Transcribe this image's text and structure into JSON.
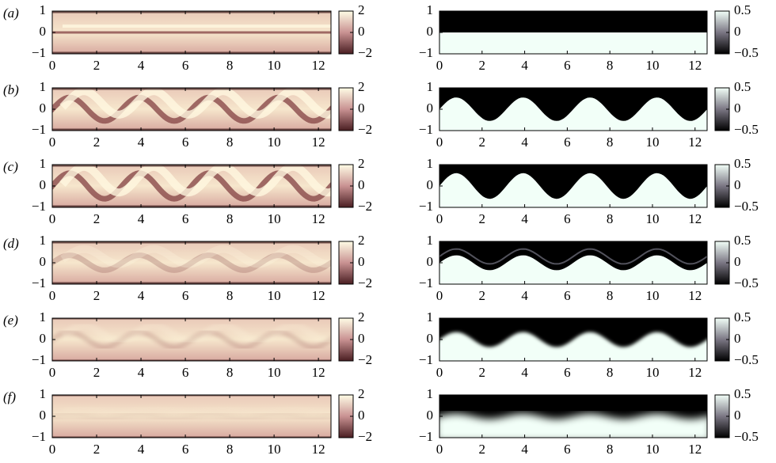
{
  "panels": [
    {
      "label": "(a)"
    },
    {
      "label": "(b)"
    },
    {
      "label": "(c)"
    },
    {
      "label": "(d)"
    },
    {
      "label": "(e)"
    },
    {
      "label": "(f)"
    }
  ],
  "x_axis": {
    "lim": [
      0,
      12.566
    ],
    "ticks": [
      0,
      2,
      4,
      6,
      8,
      10,
      12
    ]
  },
  "y_axis": {
    "lim": [
      -1,
      1
    ],
    "ticks": [
      {
        "value": -1,
        "label": "−1"
      },
      0,
      1
    ]
  },
  "colorbars": {
    "left": {
      "lim": [
        -2,
        2
      ],
      "ticks": [
        {
          "value": -2,
          "label": "−2"
        },
        0,
        2
      ]
    },
    "right": {
      "lim": [
        -0.5,
        0.5
      ],
      "ticks": [
        {
          "value": -0.5,
          "label": "−0.5"
        },
        0,
        0.5
      ]
    }
  }
}
